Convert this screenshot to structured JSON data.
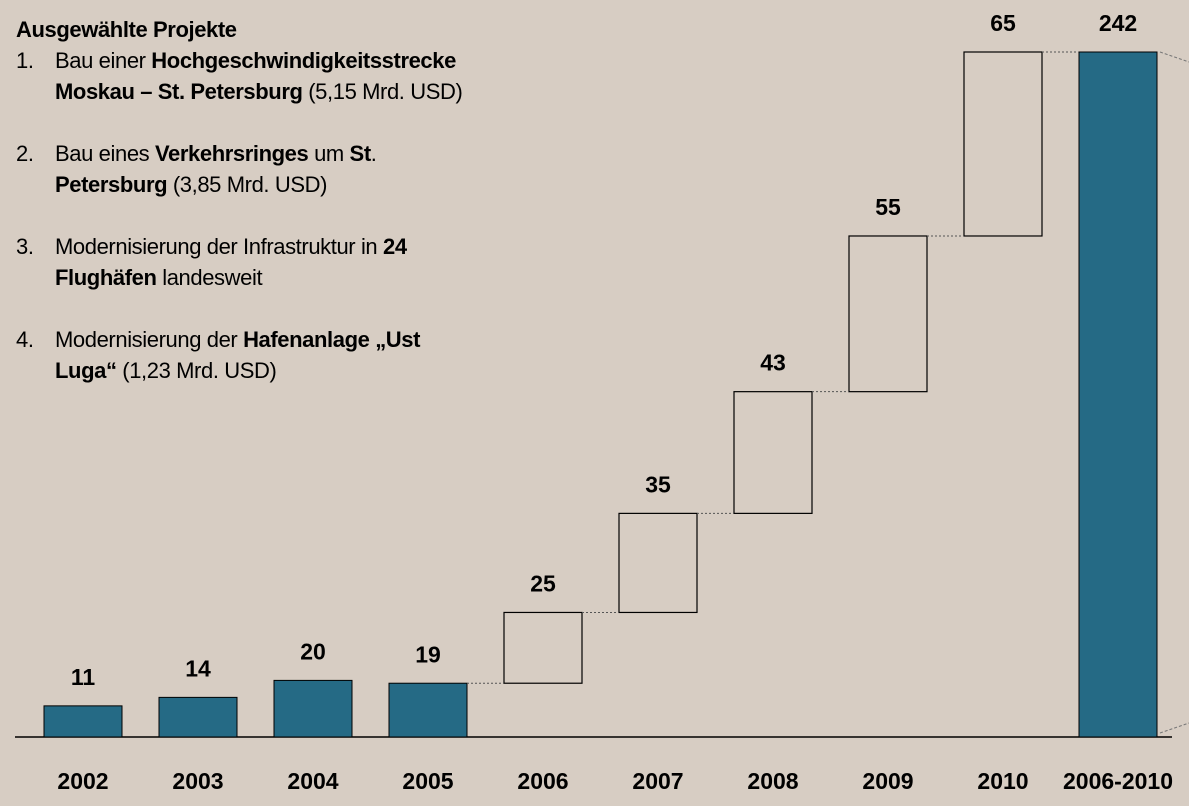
{
  "text_panel": {
    "heading": "Ausgewählte Projekte",
    "items": [
      {
        "number": "1.",
        "lines": [
          [
            {
              "text": "Bau einer ",
              "bold": false
            },
            {
              "text": "Hochgeschwindigkeitsstrecke",
              "bold": true
            }
          ],
          [
            {
              "text": "Moskau – St. Petersburg",
              "bold": true
            },
            {
              "text": " (5,15 Mrd. USD)",
              "bold": false
            }
          ]
        ]
      },
      {
        "number": "2.",
        "lines": [
          [
            {
              "text": "Bau eines ",
              "bold": false
            },
            {
              "text": "Verkehrsringes",
              "bold": true
            },
            {
              "text": " um ",
              "bold": false
            },
            {
              "text": "St",
              "bold": true
            },
            {
              "text": ".",
              "bold": false
            }
          ],
          [
            {
              "text": "Petersburg",
              "bold": true
            },
            {
              "text": " (3,85 Mrd. USD)",
              "bold": false
            }
          ]
        ]
      },
      {
        "number": "3.",
        "lines": [
          [
            {
              "text": "Modernisierung der Infrastruktur in ",
              "bold": false
            },
            {
              "text": "24",
              "bold": true
            }
          ],
          [
            {
              "text": "Flughäfen",
              "bold": true
            },
            {
              "text": " landesweit",
              "bold": false
            }
          ]
        ]
      },
      {
        "number": "4.",
        "lines": [
          [
            {
              "text": "Modernisierung der ",
              "bold": false
            },
            {
              "text": "Hafenanlage „Ust",
              "bold": true
            }
          ],
          [
            {
              "text": "Luga“",
              "bold": true
            },
            {
              "text": " (1,23 Mrd. USD)",
              "bold": false
            }
          ]
        ]
      }
    ]
  },
  "chart_data": {
    "type": "waterfall",
    "categories": [
      "2002",
      "2003",
      "2004",
      "2005",
      "2006",
      "2007",
      "2008",
      "2009",
      "2010",
      "2006-2010"
    ],
    "values": [
      11,
      14,
      20,
      19,
      25,
      35,
      43,
      55,
      65,
      242
    ],
    "measure": [
      "absolute",
      "absolute",
      "absolute",
      "absolute",
      "relative",
      "relative",
      "relative",
      "relative",
      "relative",
      "total"
    ],
    "color": "#256a85",
    "step_color": "#000000"
  }
}
